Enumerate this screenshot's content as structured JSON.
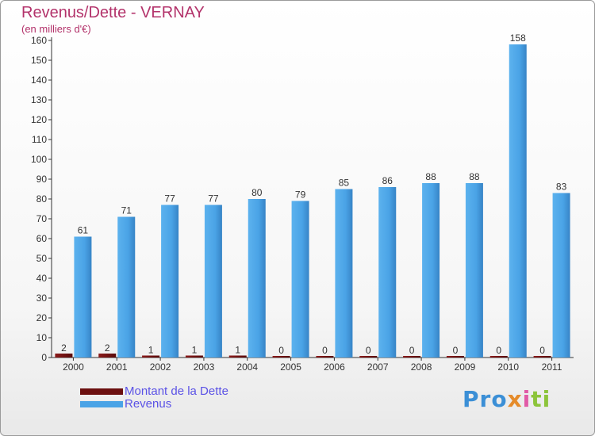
{
  "header": {
    "title": "Revenus/Dette - VERNAY",
    "subtitle": "(en milliers d'€)"
  },
  "legend": {
    "items": [
      {
        "label": "Montant de la Dette",
        "color": "#6b0f0f"
      },
      {
        "label": "Revenus",
        "color": "#4aa3e6"
      }
    ]
  },
  "logo": {
    "text": "Proxiti"
  },
  "chart_data": {
    "type": "bar",
    "categories": [
      "2000",
      "2001",
      "2002",
      "2003",
      "2004",
      "2005",
      "2006",
      "2007",
      "2008",
      "2009",
      "2010",
      "2011"
    ],
    "series": [
      {
        "name": "Montant de la Dette",
        "color": "#6b0f0f",
        "values": [
          2,
          2,
          1,
          1,
          1,
          0,
          0,
          0,
          0,
          0,
          0,
          0
        ]
      },
      {
        "name": "Revenus",
        "color": "#4aa3e6",
        "values": [
          61,
          71,
          77,
          77,
          80,
          79,
          85,
          86,
          88,
          88,
          158,
          83
        ]
      }
    ],
    "title": "Revenus/Dette - VERNAY",
    "ylabel": "(en milliers d'€)",
    "ylim": [
      0,
      160
    ],
    "yticks": [
      0,
      10,
      20,
      30,
      40,
      50,
      60,
      70,
      80,
      90,
      100,
      110,
      120,
      130,
      140,
      150,
      160
    ],
    "grid": false,
    "legend_position": "bottom-left"
  }
}
